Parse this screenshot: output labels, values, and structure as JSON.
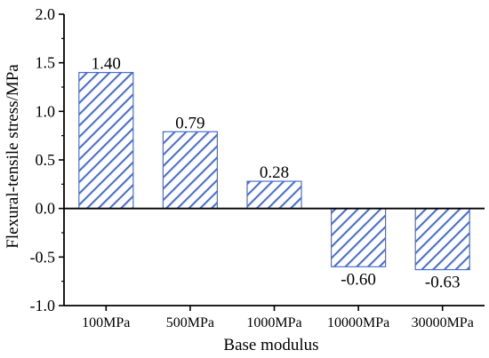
{
  "chart_data": {
    "type": "bar",
    "title": "",
    "xlabel": "Base modulus",
    "ylabel": "Flexural-tensile stress/MPa",
    "categories": [
      "100MPa",
      "500MPa",
      "1000MPa",
      "10000MPa",
      "30000MPa"
    ],
    "values": [
      1.4,
      0.79,
      0.28,
      -0.6,
      -0.63
    ],
    "value_labels": [
      "1.40",
      "0.79",
      "0.28",
      "-0.60",
      "-0.63"
    ],
    "ylim": [
      -1.0,
      2.0
    ],
    "yticks": [
      "-1.0",
      "-0.5",
      "0.0",
      "0.5",
      "1.0",
      "1.5",
      "2.0"
    ],
    "ytick_values": [
      -1.0,
      -0.5,
      0.0,
      0.5,
      1.0,
      1.5,
      2.0
    ],
    "bar_pattern": "diagonal-hatch",
    "bar_color": "#4a6fd1",
    "grid": false,
    "legend": "none"
  }
}
